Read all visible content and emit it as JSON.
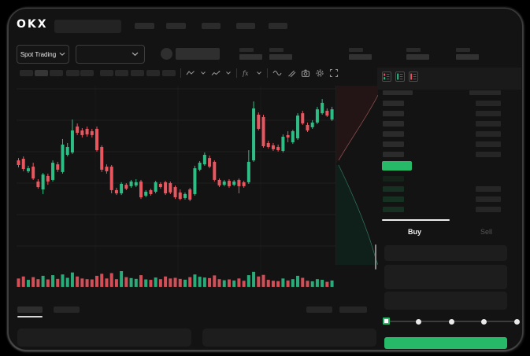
{
  "window": {
    "brand": "OKX"
  },
  "nav": {
    "placeholder_items": 5
  },
  "market_bar": {
    "market_selector": {
      "label": "Spot Trading",
      "icon": "chevron-down-icon"
    },
    "pair_selector": {
      "icon": "chevron-down-icon",
      "value": ""
    },
    "stat_placeholders": 5
  },
  "chart_toolbar": {
    "timeframe_placeholders": 10,
    "selected_timeframe_index": 1,
    "icons": [
      "divider",
      "zigzag-line-icon",
      "chevron-down-icon",
      "polyline-icon",
      "chevron-down-icon",
      "divider",
      "fx-indicator-icon",
      "chevron-down-icon",
      "divider",
      "wave-compare-icon",
      "drawing-tools-icon",
      "camera-icon",
      "gear-icon",
      "fullscreen-icon"
    ]
  },
  "colors": {
    "up": "#2ebd85",
    "down": "#e8565f",
    "accent_green": "#26ba68",
    "depth_asks_fill": "#231416",
    "depth_bids_fill": "#0f1f19",
    "depth_asks_line": "rgba(220,125,120,0.55)",
    "depth_bids_line": "rgba(80,190,160,0.5)"
  },
  "chart_data": {
    "type": "candlestick",
    "title": "",
    "axis_labels_visible": false,
    "price_scale": [
      0,
      100
    ],
    "grid": true,
    "volume_included": true,
    "candles_ohlc": [
      [
        58.3,
        59.6,
        54.4,
        55.7
      ],
      [
        59.2,
        60.5,
        52.2,
        53.5
      ],
      [
        52.2,
        55.3,
        51.3,
        53.9
      ],
      [
        54.8,
        57,
        47.4,
        48.2
      ],
      [
        46.5,
        47.8,
        42.5,
        43.4
      ],
      [
        42.1,
        51.3,
        39.5,
        50.4
      ],
      [
        49.6,
        50.9,
        44.7,
        46.5
      ],
      [
        47.4,
        58.3,
        46.5,
        57
      ],
      [
        56.1,
        57.5,
        51.8,
        53.1
      ],
      [
        51.8,
        70.2,
        50.9,
        67.1
      ],
      [
        61.4,
        68,
        60.5,
        65.8
      ],
      [
        62.7,
        81.1,
        61.8,
        75
      ],
      [
        77.2,
        78.9,
        72.4,
        73.7
      ],
      [
        75,
        76.3,
        71.1,
        72.4
      ],
      [
        75.9,
        77.2,
        71.5,
        72.8
      ],
      [
        74.6,
        75.9,
        71.1,
        72.4
      ],
      [
        75.9,
        77.2,
        63.2,
        64
      ],
      [
        65.8,
        66.7,
        51.8,
        53.1
      ],
      [
        54.8,
        56.1,
        50.9,
        52.2
      ],
      [
        54.8,
        55.7,
        39.9,
        41.7
      ],
      [
        41.7,
        43,
        39,
        39.9
      ],
      [
        39.9,
        46.1,
        39,
        45.2
      ],
      [
        44.7,
        45.6,
        41.7,
        42.5
      ],
      [
        43.9,
        47.4,
        43,
        46.5
      ],
      [
        44.3,
        47.8,
        43.4,
        46.1
      ],
      [
        46.5,
        47.4,
        36.8,
        37.7
      ],
      [
        38.6,
        41.7,
        37.7,
        40.8
      ],
      [
        41.7,
        42.5,
        38.6,
        39.5
      ],
      [
        40.8,
        46.9,
        39.9,
        46.1
      ],
      [
        45.2,
        46.1,
        42.5,
        43.4
      ],
      [
        46.1,
        46.9,
        39,
        39.9
      ],
      [
        45.6,
        46.5,
        39.5,
        40.4
      ],
      [
        43.4,
        44.3,
        36.8,
        37.7
      ],
      [
        40.4,
        42.1,
        36,
        36.8
      ],
      [
        37.3,
        40.4,
        36.4,
        39.5
      ],
      [
        42.1,
        43,
        35.5,
        36.4
      ],
      [
        39.5,
        55.3,
        38.6,
        53.9
      ],
      [
        53.1,
        57.9,
        52.2,
        57
      ],
      [
        56.1,
        62.7,
        55.3,
        61.4
      ],
      [
        59.6,
        61,
        53.9,
        54.8
      ],
      [
        57.5,
        58.3,
        46.5,
        47.4
      ],
      [
        47.4,
        48.2,
        43.4,
        44.3
      ],
      [
        44.7,
        47.4,
        43.9,
        46.5
      ],
      [
        46.9,
        47.8,
        43,
        43.9
      ],
      [
        44.7,
        47.4,
        43.9,
        46.5
      ],
      [
        47.4,
        48.2,
        39.9,
        43.9
      ],
      [
        46.1,
        46.9,
        43,
        43.9
      ],
      [
        46.1,
        64,
        45.2,
        57.5
      ],
      [
        58.3,
        91.2,
        57.5,
        87.3
      ],
      [
        83.8,
        85.1,
        75,
        75.9
      ],
      [
        82.5,
        83.8,
        65.4,
        66.2
      ],
      [
        68,
        69.3,
        64.9,
        65.8
      ],
      [
        66.7,
        68,
        63.6,
        64.5
      ],
      [
        65.8,
        67.1,
        63.2,
        64
      ],
      [
        63.6,
        72.8,
        62.7,
        71.5
      ],
      [
        72.4,
        74.6,
        68.4,
        71.1
      ],
      [
        68.4,
        75.4,
        67.5,
        74.6
      ],
      [
        70.6,
        84.6,
        69.7,
        83.3
      ],
      [
        84.6,
        86,
        78.1,
        78.9
      ],
      [
        78.1,
        79.4,
        74.1,
        75
      ],
      [
        76.8,
        80.7,
        75.9,
        79.4
      ],
      [
        79.4,
        88.2,
        78.5,
        86.8
      ],
      [
        84.6,
        92.5,
        83.8,
        90.4
      ],
      [
        86,
        87.3,
        82.5,
        83.3
      ],
      [
        81.1,
        88.2,
        80.3,
        86.8
      ]
    ],
    "volume": [
      45,
      60,
      35,
      55,
      40,
      65,
      38,
      70,
      42,
      75,
      50,
      90,
      60,
      45,
      40,
      38,
      65,
      80,
      45,
      85,
      40,
      100,
      55,
      48,
      42,
      70,
      38,
      35,
      52,
      40,
      60,
      45,
      50,
      42,
      36,
      55,
      75,
      58,
      52,
      48,
      68,
      40,
      32,
      38,
      30,
      45,
      28,
      70,
      95,
      60,
      72,
      35,
      28,
      25,
      45,
      30,
      40,
      65,
      50,
      28,
      24,
      40,
      35,
      20,
      30
    ],
    "depth_overlay": {
      "asks_side": "top",
      "bids_side": "bottom"
    }
  },
  "order_book": {
    "view_icons": [
      "orderbook-combined-icon",
      "orderbook-bids-icon",
      "orderbook-asks-icon"
    ],
    "header_placeholders": 2,
    "ask_rows": 6,
    "last_price_highlight": true,
    "bid_rows": 4,
    "bid_rows_with_amount_from": 1
  },
  "trade_panel": {
    "tabs": [
      {
        "label": "Buy",
        "active": true
      },
      {
        "label": "Sell",
        "active": false
      }
    ],
    "input_placeholders": 3,
    "slider": {
      "stops": 5,
      "selected_index": 0
    },
    "submit_button": {
      "label": ""
    }
  },
  "bottom_bar": {
    "tab_placeholders": 2,
    "active_tab_index": 0,
    "right_placeholders": 2,
    "panel_placeholders": 2
  }
}
